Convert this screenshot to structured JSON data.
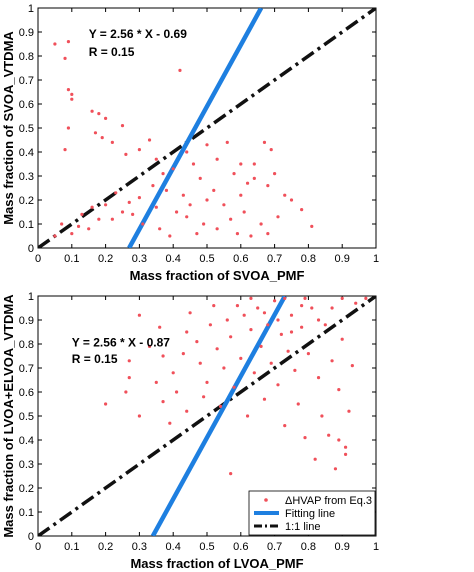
{
  "chart_data": [
    {
      "type": "scatter",
      "xlabel": "Mass fraction of SVOA_PMF",
      "ylabel": "Mass fraction of SVOA_VTDMA",
      "xlim": [
        0,
        1
      ],
      "ylim": [
        0,
        1
      ],
      "xticks": [
        "0",
        "0.1",
        "0.2",
        "0.3",
        "0.4",
        "0.5",
        "0.6",
        "0.7",
        "0.8",
        "0.9",
        "1"
      ],
      "yticks": [
        "0",
        "0.1",
        "0.2",
        "0.3",
        "0.4",
        "0.5",
        "0.6",
        "0.7",
        "0.8",
        "0.9",
        "1"
      ],
      "annotations": [
        "Y = 2.56 * X - 0.69",
        "R = 0.15"
      ],
      "fit": {
        "slope": 2.56,
        "intercept": -0.69
      },
      "one_to_one": true,
      "legend": null,
      "colors": {
        "points": "#f0505a",
        "fit": "#1e7fe0",
        "one_to_one": "#111111"
      },
      "points": [
        [
          0.05,
          0.85
        ],
        [
          0.09,
          0.86
        ],
        [
          0.08,
          0.79
        ],
        [
          0.09,
          0.66
        ],
        [
          0.1,
          0.64
        ],
        [
          0.1,
          0.62
        ],
        [
          0.09,
          0.5
        ],
        [
          0.08,
          0.41
        ],
        [
          0.16,
          0.57
        ],
        [
          0.18,
          0.56
        ],
        [
          0.17,
          0.48
        ],
        [
          0.19,
          0.46
        ],
        [
          0.2,
          0.54
        ],
        [
          0.22,
          0.44
        ],
        [
          0.25,
          0.51
        ],
        [
          0.26,
          0.39
        ],
        [
          0.3,
          0.41
        ],
        [
          0.33,
          0.45
        ],
        [
          0.35,
          0.37
        ],
        [
          0.37,
          0.31
        ],
        [
          0.4,
          0.33
        ],
        [
          0.42,
          0.74
        ],
        [
          0.44,
          0.4
        ],
        [
          0.46,
          0.35
        ],
        [
          0.48,
          0.29
        ],
        [
          0.5,
          0.43
        ],
        [
          0.53,
          0.37
        ],
        [
          0.56,
          0.44
        ],
        [
          0.58,
          0.31
        ],
        [
          0.6,
          0.35
        ],
        [
          0.62,
          0.27
        ],
        [
          0.64,
          0.29
        ],
        [
          0.67,
          0.44
        ],
        [
          0.68,
          0.26
        ],
        [
          0.69,
          0.41
        ],
        [
          0.7,
          0.31
        ],
        [
          0.73,
          0.22
        ],
        [
          0.75,
          0.2
        ],
        [
          0.78,
          0.16
        ],
        [
          0.81,
          0.09
        ],
        [
          0.64,
          0.35
        ],
        [
          0.6,
          0.22
        ],
        [
          0.55,
          0.18
        ],
        [
          0.52,
          0.24
        ],
        [
          0.47,
          0.06
        ],
        [
          0.44,
          0.13
        ],
        [
          0.38,
          0.24
        ],
        [
          0.34,
          0.26
        ],
        [
          0.3,
          0.21
        ],
        [
          0.27,
          0.19
        ],
        [
          0.25,
          0.15
        ],
        [
          0.22,
          0.12
        ],
        [
          0.2,
          0.18
        ],
        [
          0.18,
          0.12
        ],
        [
          0.15,
          0.08
        ],
        [
          0.12,
          0.09
        ],
        [
          0.1,
          0.06
        ],
        [
          0.07,
          0.1
        ],
        [
          0.05,
          0.05
        ],
        [
          0.13,
          0.14
        ],
        [
          0.16,
          0.17
        ],
        [
          0.23,
          0.23
        ],
        [
          0.28,
          0.14
        ],
        [
          0.31,
          0.1
        ],
        [
          0.35,
          0.17
        ],
        [
          0.36,
          0.08
        ],
        [
          0.39,
          0.05
        ],
        [
          0.41,
          0.15
        ],
        [
          0.43,
          0.22
        ],
        [
          0.45,
          0.18
        ],
        [
          0.49,
          0.1
        ],
        [
          0.5,
          0.2
        ],
        [
          0.53,
          0.08
        ],
        [
          0.57,
          0.12
        ],
        [
          0.59,
          0.06
        ],
        [
          0.61,
          0.15
        ],
        [
          0.63,
          0.05
        ],
        [
          0.66,
          0.1
        ],
        [
          0.68,
          0.06
        ],
        [
          0.71,
          0.13
        ]
      ]
    },
    {
      "type": "scatter",
      "xlabel": "Mass fraction of LVOA_PMF",
      "ylabel": "Mass fraction of LVOA+ELVOA_VTDMA",
      "xlim": [
        0,
        1
      ],
      "ylim": [
        0,
        1
      ],
      "xticks": [
        "0",
        "0.1",
        "0.2",
        "0.3",
        "0.4",
        "0.5",
        "0.6",
        "0.7",
        "0.8",
        "0.9",
        "1"
      ],
      "yticks": [
        "0",
        "0.1",
        "0.2",
        "0.3",
        "0.4",
        "0.5",
        "0.6",
        "0.7",
        "0.8",
        "0.9",
        "1"
      ],
      "annotations": [
        "Y = 2.56 * X - 0.87",
        "R = 0.15"
      ],
      "fit": {
        "slope": 2.56,
        "intercept": -0.87
      },
      "one_to_one": true,
      "legend_position": "bottom-right",
      "legend": [
        "ΔHVAP from Eq.3",
        "Fitting line",
        "1:1 line"
      ],
      "colors": {
        "points": "#f0505a",
        "fit": "#1e7fe0",
        "one_to_one": "#111111"
      },
      "points": [
        [
          0.3,
          0.92
        ],
        [
          0.33,
          0.79
        ],
        [
          0.36,
          0.87
        ],
        [
          0.37,
          0.75
        ],
        [
          0.35,
          0.64
        ],
        [
          0.27,
          0.66
        ],
        [
          0.26,
          0.6
        ],
        [
          0.27,
          0.73
        ],
        [
          0.37,
          0.56
        ],
        [
          0.4,
          0.68
        ],
        [
          0.41,
          0.6
        ],
        [
          0.43,
          0.76
        ],
        [
          0.44,
          0.85
        ],
        [
          0.45,
          0.93
        ],
        [
          0.47,
          0.81
        ],
        [
          0.48,
          0.72
        ],
        [
          0.5,
          0.64
        ],
        [
          0.51,
          0.88
        ],
        [
          0.52,
          0.96
        ],
        [
          0.53,
          0.78
        ],
        [
          0.55,
          0.7
        ],
        [
          0.56,
          0.9
        ],
        [
          0.57,
          0.83
        ],
        [
          0.58,
          0.62
        ],
        [
          0.6,
          0.74
        ],
        [
          0.61,
          0.92
        ],
        [
          0.62,
          0.5
        ],
        [
          0.63,
          0.86
        ],
        [
          0.64,
          0.68
        ],
        [
          0.65,
          0.95
        ],
        [
          0.66,
          0.79
        ],
        [
          0.67,
          0.57
        ],
        [
          0.68,
          0.88
        ],
        [
          0.69,
          0.72
        ],
        [
          0.7,
          0.98
        ],
        [
          0.71,
          0.63
        ],
        [
          0.72,
          0.84
        ],
        [
          0.73,
          0.46
        ],
        [
          0.74,
          0.77
        ],
        [
          0.75,
          0.92
        ],
        [
          0.76,
          0.69
        ],
        [
          0.77,
          0.55
        ],
        [
          0.78,
          0.87
        ],
        [
          0.79,
          0.41
        ],
        [
          0.8,
          0.76
        ],
        [
          0.81,
          0.95
        ],
        [
          0.82,
          0.32
        ],
        [
          0.83,
          0.66
        ],
        [
          0.84,
          0.5
        ],
        [
          0.85,
          0.88
        ],
        [
          0.86,
          0.42
        ],
        [
          0.87,
          0.73
        ],
        [
          0.88,
          0.28
        ],
        [
          0.89,
          0.61
        ],
        [
          0.9,
          0.82
        ],
        [
          0.91,
          0.37
        ],
        [
          0.92,
          0.52
        ],
        [
          0.93,
          0.71
        ],
        [
          0.91,
          0.34
        ],
        [
          0.89,
          0.4
        ],
        [
          0.57,
          0.26
        ],
        [
          0.2,
          0.55
        ],
        [
          0.3,
          0.5
        ],
        [
          0.39,
          0.47
        ],
        [
          0.44,
          0.52
        ],
        [
          0.49,
          0.58
        ],
        [
          0.54,
          0.54
        ],
        [
          0.59,
          0.96
        ],
        [
          0.63,
          0.99
        ],
        [
          0.67,
          0.93
        ],
        [
          0.71,
          0.9
        ],
        [
          0.75,
          0.85
        ],
        [
          0.79,
          0.99
        ],
        [
          0.83,
          0.9
        ],
        [
          0.87,
          0.95
        ],
        [
          0.9,
          0.99
        ],
        [
          0.94,
          0.97
        ],
        [
          0.97,
          0.99
        ],
        [
          0.73,
          0.99
        ],
        [
          0.78,
          0.96
        ]
      ]
    }
  ]
}
